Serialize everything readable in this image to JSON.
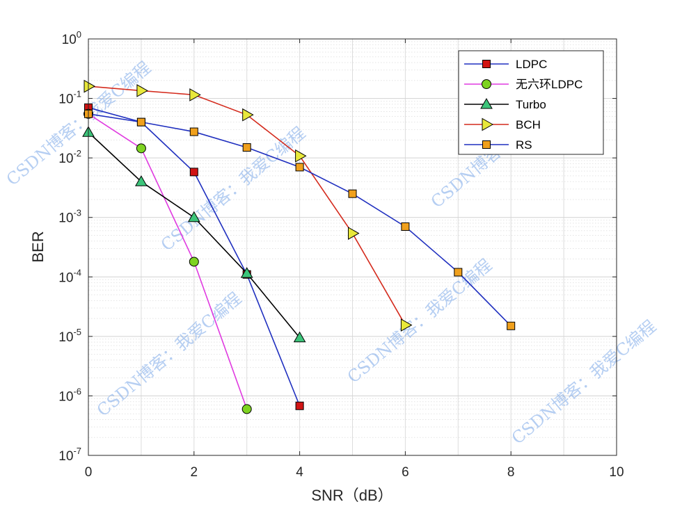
{
  "chart_data": {
    "type": "line",
    "title": "",
    "xlabel": "SNR（dB）",
    "ylabel": "BER",
    "xlim": [
      0,
      10
    ],
    "ylim": [
      1e-07,
      1
    ],
    "yscale": "log",
    "grid": true,
    "legend_position": "top-right",
    "x_ticks": [
      "0",
      "2",
      "4",
      "6",
      "8",
      "10"
    ],
    "y_ticks": [
      {
        "base": "10",
        "exp": "0"
      },
      {
        "base": "10",
        "exp": "-1"
      },
      {
        "base": "10",
        "exp": "-2"
      },
      {
        "base": "10",
        "exp": "-3"
      },
      {
        "base": "10",
        "exp": "-4"
      },
      {
        "base": "10",
        "exp": "-5"
      },
      {
        "base": "10",
        "exp": "-6"
      },
      {
        "base": "10",
        "exp": "-7"
      }
    ],
    "series": [
      {
        "name": "LDPC",
        "line_color": "#1f2fbf",
        "marker": "square",
        "marker_color": "#d11414",
        "x": [
          0,
          1,
          2,
          3,
          4
        ],
        "y": [
          0.07,
          0.04,
          0.0058,
          0.00011,
          6.8e-07
        ]
      },
      {
        "name": "无六环LDPC",
        "line_color": "#e03ae0",
        "marker": "circle",
        "marker_color": "#7ed321",
        "x": [
          0,
          1,
          2,
          3
        ],
        "y": [
          0.055,
          0.0145,
          0.00018,
          6e-07
        ]
      },
      {
        "name": "Turbo",
        "line_color": "#000000",
        "marker": "triangle-up",
        "marker_color": "#3cc47a",
        "x": [
          0,
          1,
          2,
          3,
          4
        ],
        "y": [
          0.027,
          0.004,
          0.001,
          0.000115,
          9.5e-06
        ]
      },
      {
        "name": "BCH",
        "line_color": "#d42a1c",
        "marker": "triangle-right",
        "marker_color": "#e8e83a",
        "x": [
          0,
          1,
          2,
          3,
          4,
          5,
          6
        ],
        "y": [
          0.16,
          0.135,
          0.115,
          0.053,
          0.0108,
          0.00054,
          1.55e-05
        ]
      },
      {
        "name": "RS",
        "line_color": "#1f2fbf",
        "marker": "square",
        "marker_color": "#f0a01c",
        "x": [
          0,
          1,
          2,
          3,
          4,
          5,
          6,
          7,
          8
        ],
        "y": [
          0.055,
          0.04,
          0.0275,
          0.015,
          0.007,
          0.0025,
          0.0007,
          0.00012,
          1.5e-05
        ]
      }
    ]
  },
  "watermarks": [
    "CSDN博客：我爱C编程",
    "CSDN博客：我爱C编程",
    "CSDN博客：我爱C编程",
    "CSDN博客：我爱C编程",
    "CSDN博客：我爱C编程",
    "CSDN博客：我爱C编程"
  ]
}
